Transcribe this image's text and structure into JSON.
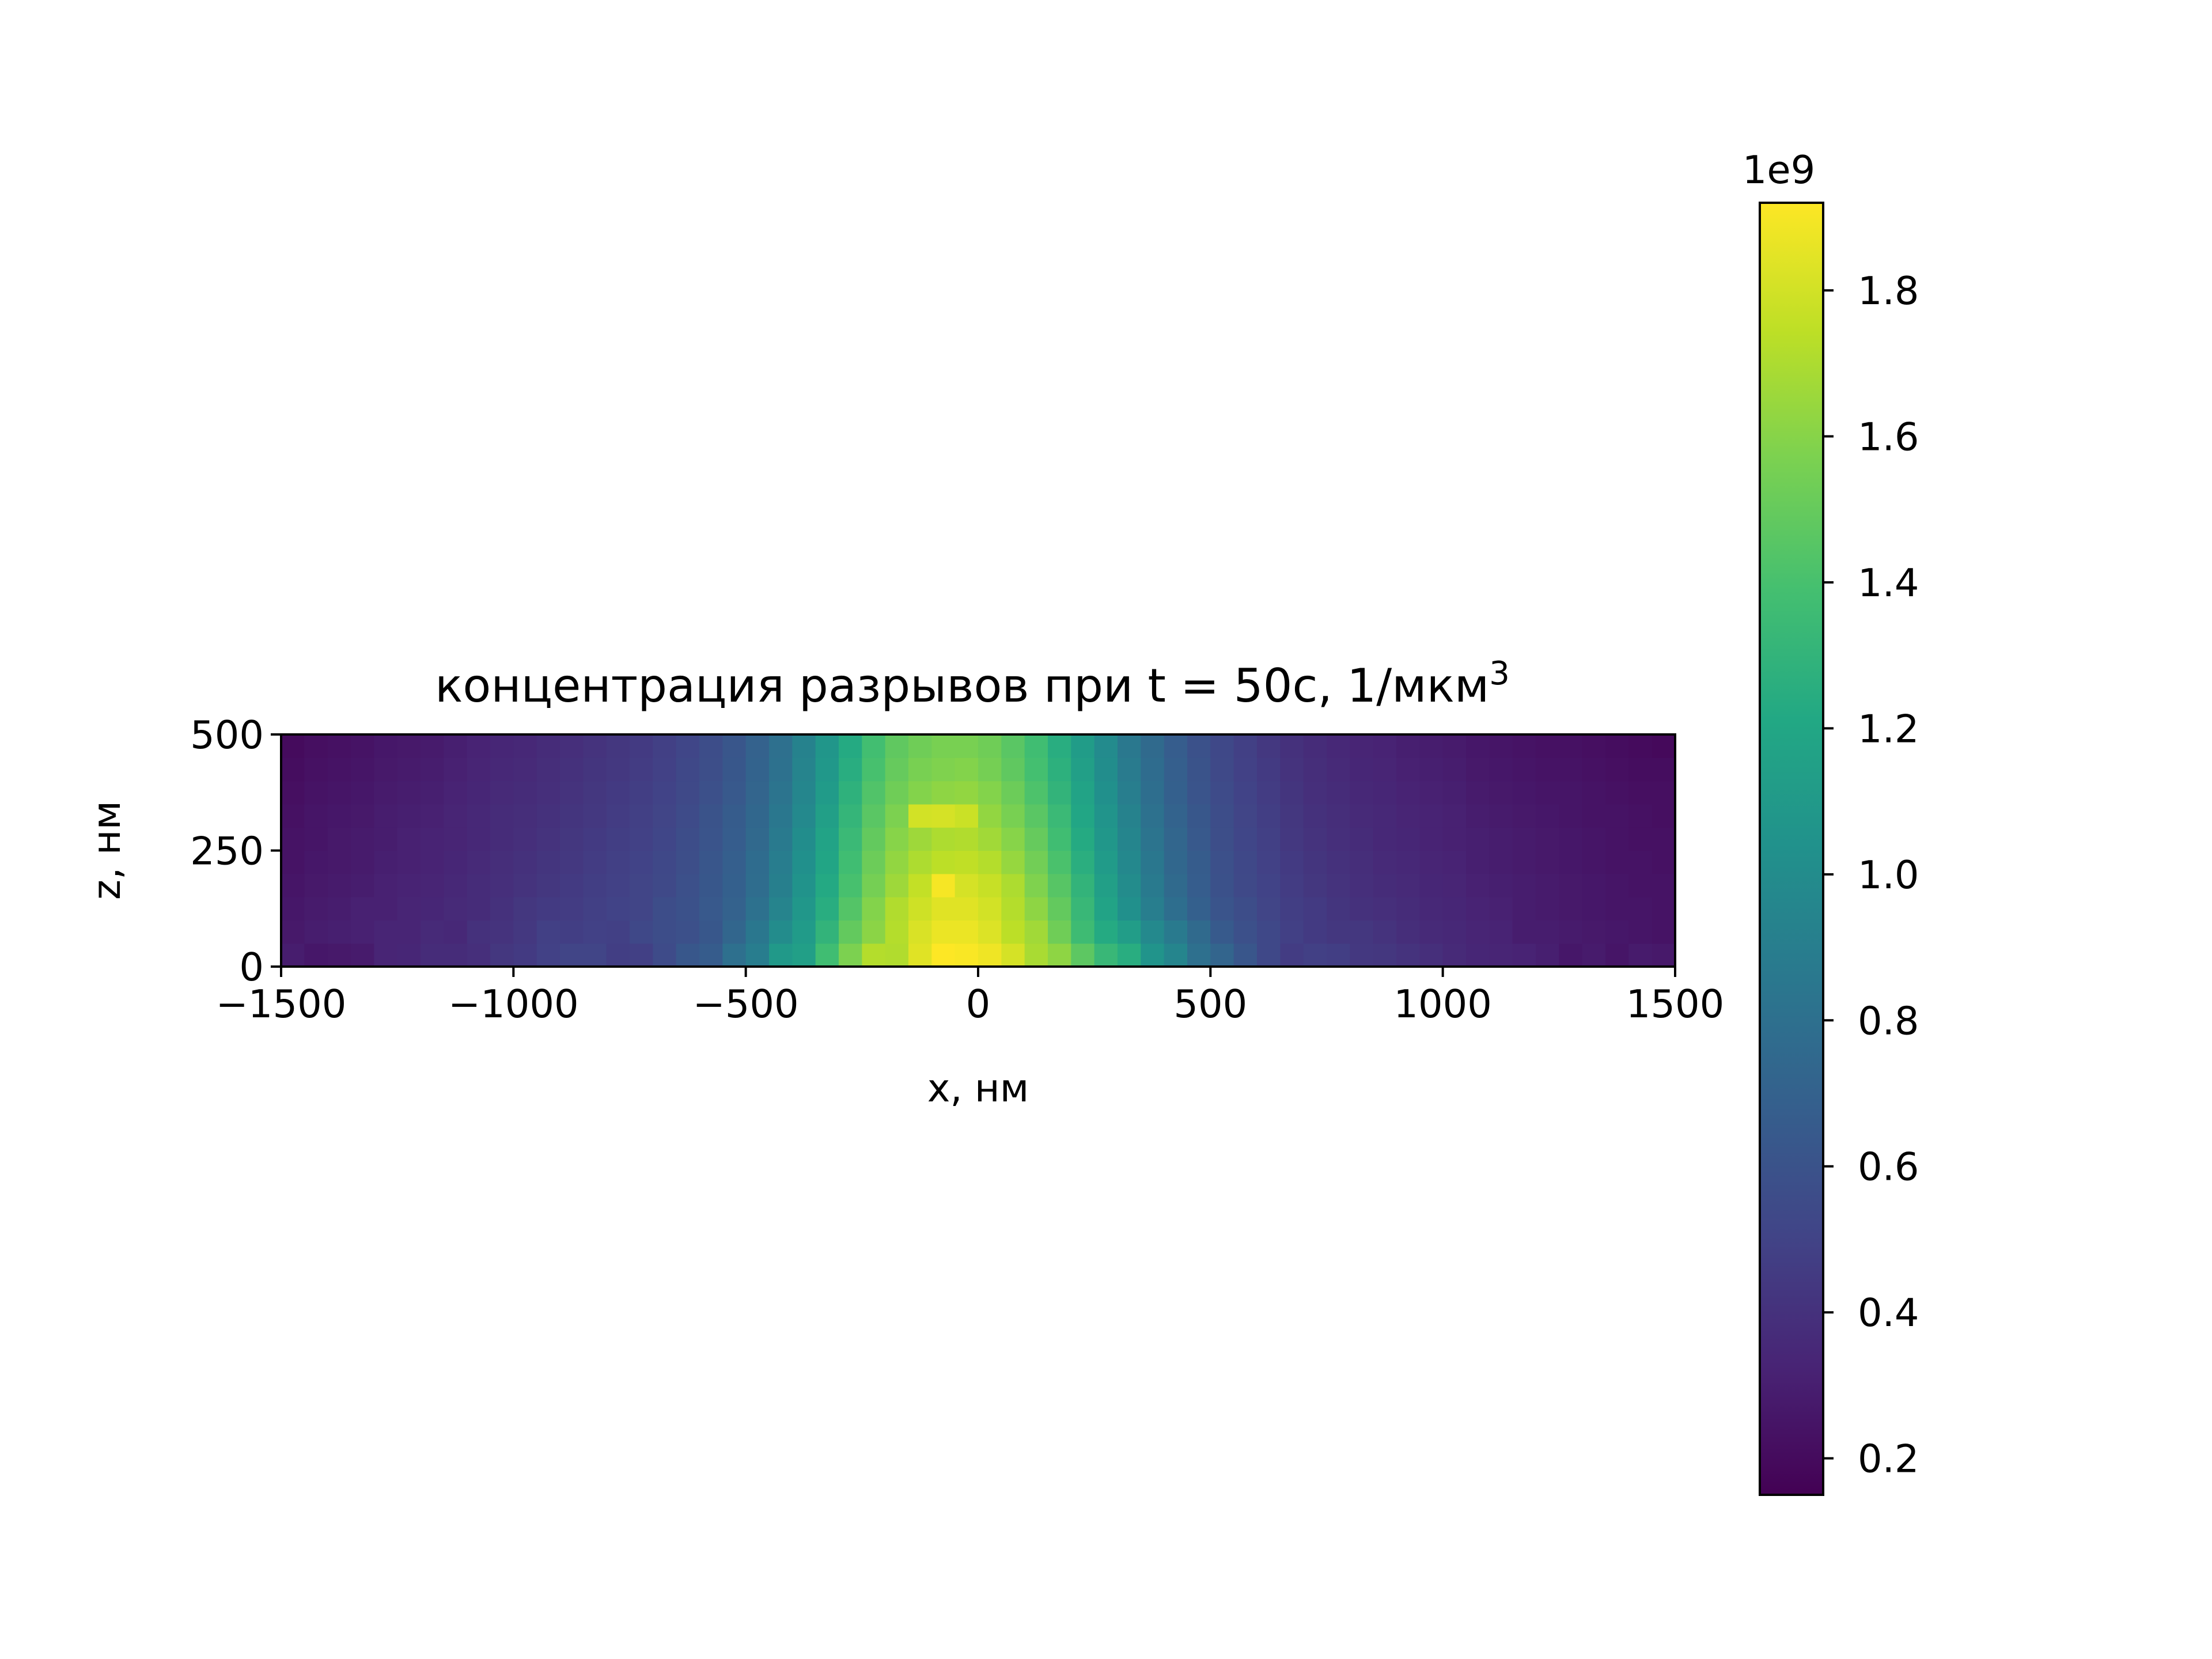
{
  "chart_data": {
    "type": "heatmap",
    "title": "концентрация разрывов при t = 50с, 1/мкм",
    "title_superscript": "3",
    "xlabel": "x, нм",
    "ylabel": "z, нм",
    "xlim": [
      -1500,
      1500
    ],
    "ylim": [
      0,
      500
    ],
    "x_ticks": [
      "−1500",
      "−1000",
      "−500",
      "0",
      "500",
      "1000",
      "1500"
    ],
    "x_tick_values": [
      -1500,
      -1000,
      -500,
      0,
      500,
      1000,
      1500
    ],
    "y_ticks": [
      "0",
      "250",
      "500"
    ],
    "y_tick_values": [
      0,
      250,
      500
    ],
    "grid": false,
    "colormap": "viridis",
    "colorbar": {
      "min": 0.15,
      "max": 1.92,
      "multiplier": "1e9",
      "ticks": [
        "0.2",
        "0.4",
        "0.6",
        "0.8",
        "1.0",
        "1.2",
        "1.4",
        "1.6",
        "1.8"
      ],
      "tick_values": [
        0.2,
        0.4,
        0.6,
        0.8,
        1.0,
        1.2,
        1.4,
        1.6,
        1.8
      ]
    },
    "cell_size_nm": 50,
    "x_centers": [
      -1475,
      -1425,
      -1375,
      -1325,
      -1275,
      -1225,
      -1175,
      -1125,
      -1075,
      -1025,
      -975,
      -925,
      -875,
      -825,
      -775,
      -725,
      -675,
      -625,
      -575,
      -525,
      -475,
      -425,
      -375,
      -325,
      -275,
      -225,
      -175,
      -125,
      -75,
      -25,
      25,
      75,
      125,
      175,
      225,
      275,
      325,
      375,
      425,
      475,
      525,
      575,
      625,
      675,
      725,
      775,
      825,
      875,
      925,
      975,
      1025,
      1075,
      1125,
      1175,
      1225,
      1275,
      1325,
      1375,
      1425,
      1475
    ],
    "z_centers": [
      25,
      75,
      125,
      175,
      225,
      275,
      325,
      375,
      425,
      475
    ],
    "values_unit": "1e9 1/мкм3",
    "values": [
      [
        0.29,
        0.26,
        0.27,
        0.28,
        0.33,
        0.34,
        0.37,
        0.37,
        0.39,
        0.43,
        0.45,
        0.49,
        0.51,
        0.51,
        0.47,
        0.48,
        0.55,
        0.63,
        0.66,
        0.8,
        0.89,
        1.1,
        1.14,
        1.37,
        1.57,
        1.72,
        1.71,
        1.84,
        1.93,
        1.91,
        1.88,
        1.81,
        1.69,
        1.62,
        1.47,
        1.33,
        1.25,
        1.06,
        0.95,
        0.8,
        0.72,
        0.62,
        0.53,
        0.46,
        0.48,
        0.47,
        0.44,
        0.43,
        0.41,
        0.39,
        0.36,
        0.34,
        0.33,
        0.32,
        0.3,
        0.26,
        0.28,
        0.25,
        0.28,
        0.27
      ],
      [
        0.27,
        0.29,
        0.3,
        0.31,
        0.33,
        0.33,
        0.36,
        0.35,
        0.4,
        0.41,
        0.44,
        0.48,
        0.47,
        0.49,
        0.48,
        0.53,
        0.56,
        0.58,
        0.63,
        0.73,
        0.85,
        1.0,
        1.11,
        1.3,
        1.49,
        1.61,
        1.72,
        1.82,
        1.87,
        1.87,
        1.83,
        1.74,
        1.67,
        1.53,
        1.36,
        1.23,
        1.13,
        0.98,
        0.87,
        0.76,
        0.65,
        0.58,
        0.53,
        0.48,
        0.45,
        0.43,
        0.43,
        0.41,
        0.38,
        0.36,
        0.35,
        0.33,
        0.32,
        0.29,
        0.29,
        0.28,
        0.27,
        0.26,
        0.25,
        0.24
      ],
      [
        0.26,
        0.28,
        0.29,
        0.31,
        0.31,
        0.33,
        0.34,
        0.36,
        0.37,
        0.4,
        0.43,
        0.45,
        0.46,
        0.48,
        0.5,
        0.51,
        0.56,
        0.59,
        0.64,
        0.7,
        0.81,
        0.94,
        1.08,
        1.25,
        1.44,
        1.59,
        1.71,
        1.79,
        1.84,
        1.84,
        1.8,
        1.72,
        1.62,
        1.49,
        1.33,
        1.17,
        1.03,
        0.9,
        0.79,
        0.69,
        0.61,
        0.56,
        0.51,
        0.47,
        0.45,
        0.42,
        0.4,
        0.39,
        0.37,
        0.35,
        0.34,
        0.32,
        0.31,
        0.29,
        0.28,
        0.27,
        0.26,
        0.25,
        0.25,
        0.24
      ],
      [
        0.25,
        0.27,
        0.28,
        0.29,
        0.31,
        0.32,
        0.33,
        0.35,
        0.37,
        0.39,
        0.41,
        0.43,
        0.45,
        0.47,
        0.49,
        0.51,
        0.54,
        0.58,
        0.63,
        0.69,
        0.78,
        0.91,
        1.05,
        1.22,
        1.4,
        1.55,
        1.66,
        1.76,
        1.9,
        1.81,
        1.77,
        1.7,
        1.58,
        1.45,
        1.3,
        1.14,
        1.0,
        0.87,
        0.76,
        0.67,
        0.59,
        0.54,
        0.5,
        0.46,
        0.43,
        0.41,
        0.39,
        0.37,
        0.36,
        0.34,
        0.33,
        0.31,
        0.3,
        0.29,
        0.28,
        0.27,
        0.26,
        0.25,
        0.24,
        0.24
      ],
      [
        0.24,
        0.26,
        0.27,
        0.28,
        0.3,
        0.31,
        0.32,
        0.34,
        0.36,
        0.38,
        0.4,
        0.42,
        0.44,
        0.46,
        0.48,
        0.5,
        0.53,
        0.57,
        0.62,
        0.68,
        0.77,
        0.89,
        1.03,
        1.19,
        1.37,
        1.52,
        1.63,
        1.7,
        1.74,
        1.75,
        1.72,
        1.64,
        1.54,
        1.41,
        1.26,
        1.11,
        0.97,
        0.85,
        0.74,
        0.66,
        0.58,
        0.53,
        0.49,
        0.45,
        0.42,
        0.4,
        0.38,
        0.36,
        0.35,
        0.33,
        0.32,
        0.3,
        0.29,
        0.28,
        0.27,
        0.26,
        0.25,
        0.24,
        0.24,
        0.23
      ],
      [
        0.24,
        0.25,
        0.27,
        0.28,
        0.29,
        0.31,
        0.32,
        0.33,
        0.35,
        0.37,
        0.39,
        0.41,
        0.43,
        0.45,
        0.47,
        0.49,
        0.52,
        0.56,
        0.61,
        0.67,
        0.75,
        0.87,
        1.01,
        1.17,
        1.34,
        1.49,
        1.6,
        1.66,
        1.7,
        1.71,
        1.67,
        1.6,
        1.5,
        1.37,
        1.23,
        1.08,
        0.95,
        0.83,
        0.73,
        0.64,
        0.57,
        0.52,
        0.48,
        0.44,
        0.41,
        0.39,
        0.37,
        0.35,
        0.34,
        0.32,
        0.31,
        0.3,
        0.29,
        0.28,
        0.27,
        0.26,
        0.25,
        0.24,
        0.23,
        0.23
      ],
      [
        0.23,
        0.25,
        0.26,
        0.27,
        0.29,
        0.3,
        0.31,
        0.33,
        0.35,
        0.37,
        0.38,
        0.4,
        0.42,
        0.44,
        0.46,
        0.48,
        0.51,
        0.55,
        0.6,
        0.66,
        0.74,
        0.85,
        0.98,
        1.14,
        1.31,
        1.46,
        1.57,
        1.8,
        1.81,
        1.78,
        1.63,
        1.56,
        1.46,
        1.34,
        1.2,
        1.06,
        0.93,
        0.81,
        0.71,
        0.63,
        0.56,
        0.51,
        0.47,
        0.43,
        0.4,
        0.38,
        0.36,
        0.35,
        0.33,
        0.32,
        0.31,
        0.29,
        0.28,
        0.27,
        0.26,
        0.25,
        0.24,
        0.24,
        0.23,
        0.22
      ],
      [
        0.22,
        0.24,
        0.25,
        0.26,
        0.28,
        0.29,
        0.3,
        0.32,
        0.34,
        0.36,
        0.37,
        0.39,
        0.41,
        0.43,
        0.45,
        0.47,
        0.5,
        0.54,
        0.58,
        0.64,
        0.72,
        0.83,
        0.96,
        1.11,
        1.28,
        1.43,
        1.53,
        1.59,
        1.62,
        1.63,
        1.59,
        1.52,
        1.42,
        1.3,
        1.17,
        1.03,
        0.9,
        0.79,
        0.69,
        0.61,
        0.55,
        0.5,
        0.46,
        0.42,
        0.39,
        0.37,
        0.35,
        0.34,
        0.32,
        0.31,
        0.3,
        0.28,
        0.27,
        0.26,
        0.25,
        0.25,
        0.24,
        0.23,
        0.22,
        0.22
      ],
      [
        0.21,
        0.23,
        0.24,
        0.25,
        0.27,
        0.28,
        0.29,
        0.31,
        0.33,
        0.35,
        0.36,
        0.38,
        0.4,
        0.42,
        0.44,
        0.46,
        0.49,
        0.53,
        0.57,
        0.63,
        0.71,
        0.81,
        0.94,
        1.09,
        1.25,
        1.4,
        1.5,
        1.56,
        1.58,
        1.59,
        1.55,
        1.48,
        1.39,
        1.27,
        1.14,
        1.01,
        0.88,
        0.77,
        0.68,
        0.6,
        0.54,
        0.49,
        0.45,
        0.41,
        0.38,
        0.36,
        0.34,
        0.33,
        0.31,
        0.3,
        0.29,
        0.27,
        0.26,
        0.25,
        0.24,
        0.24,
        0.23,
        0.22,
        0.21,
        0.21
      ],
      [
        0.2,
        0.22,
        0.23,
        0.24,
        0.26,
        0.27,
        0.28,
        0.3,
        0.32,
        0.34,
        0.35,
        0.37,
        0.39,
        0.41,
        0.43,
        0.45,
        0.48,
        0.52,
        0.56,
        0.62,
        0.7,
        0.8,
        0.93,
        1.07,
        1.23,
        1.38,
        1.48,
        1.53,
        1.56,
        1.56,
        1.53,
        1.46,
        1.37,
        1.25,
        1.12,
        0.99,
        0.86,
        0.76,
        0.67,
        0.59,
        0.53,
        0.48,
        0.44,
        0.4,
        0.37,
        0.35,
        0.33,
        0.32,
        0.3,
        0.29,
        0.28,
        0.26,
        0.25,
        0.24,
        0.23,
        0.23,
        0.22,
        0.21,
        0.2,
        0.19
      ]
    ]
  }
}
